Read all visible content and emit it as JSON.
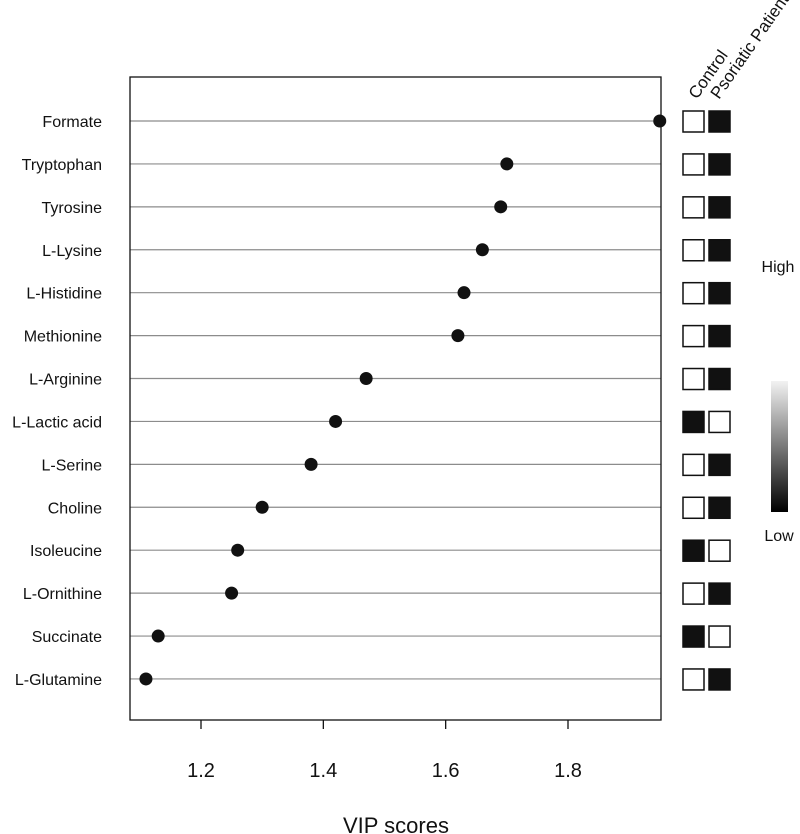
{
  "chart_data": {
    "type": "scatter",
    "xlabel": "VIP scores",
    "xlim": [
      1.08,
      1.98
    ],
    "xticks": [
      1.2,
      1.4,
      1.6,
      1.8
    ],
    "xtick_labels": [
      "1.2",
      "1.4",
      "1.6",
      "1.8"
    ],
    "categories": [
      "Formate",
      "Tryptophan",
      "Tyrosine",
      "L-Lysine",
      "L-Histidine",
      "Methionine",
      "L-Arginine",
      "L-Lactic acid",
      "L-Serine",
      "Choline",
      "Isoleucine",
      "L-Ornithine",
      "Succinate",
      "L-Glutamine"
    ],
    "values": [
      1.95,
      1.7,
      1.69,
      1.66,
      1.63,
      1.62,
      1.47,
      1.42,
      1.38,
      1.3,
      1.26,
      1.25,
      1.13,
      1.11
    ],
    "grid": "horizontal",
    "point_color": "#111111",
    "group_labels": [
      "Control",
      "Psoriatic Patient"
    ],
    "group_levels": [
      [
        "low",
        "high"
      ],
      [
        "low",
        "high"
      ],
      [
        "low",
        "high"
      ],
      [
        "low",
        "high"
      ],
      [
        "low",
        "high"
      ],
      [
        "low",
        "high"
      ],
      [
        "low",
        "high"
      ],
      [
        "high",
        "low"
      ],
      [
        "low",
        "high"
      ],
      [
        "low",
        "high"
      ],
      [
        "high",
        "low"
      ],
      [
        "low",
        "high"
      ],
      [
        "high",
        "low"
      ],
      [
        "low",
        "high"
      ]
    ],
    "legend": {
      "high_label": "High",
      "low_label": "Low",
      "high_color": "#f2f2f2",
      "low_color": "#000000",
      "placement": "right"
    }
  }
}
